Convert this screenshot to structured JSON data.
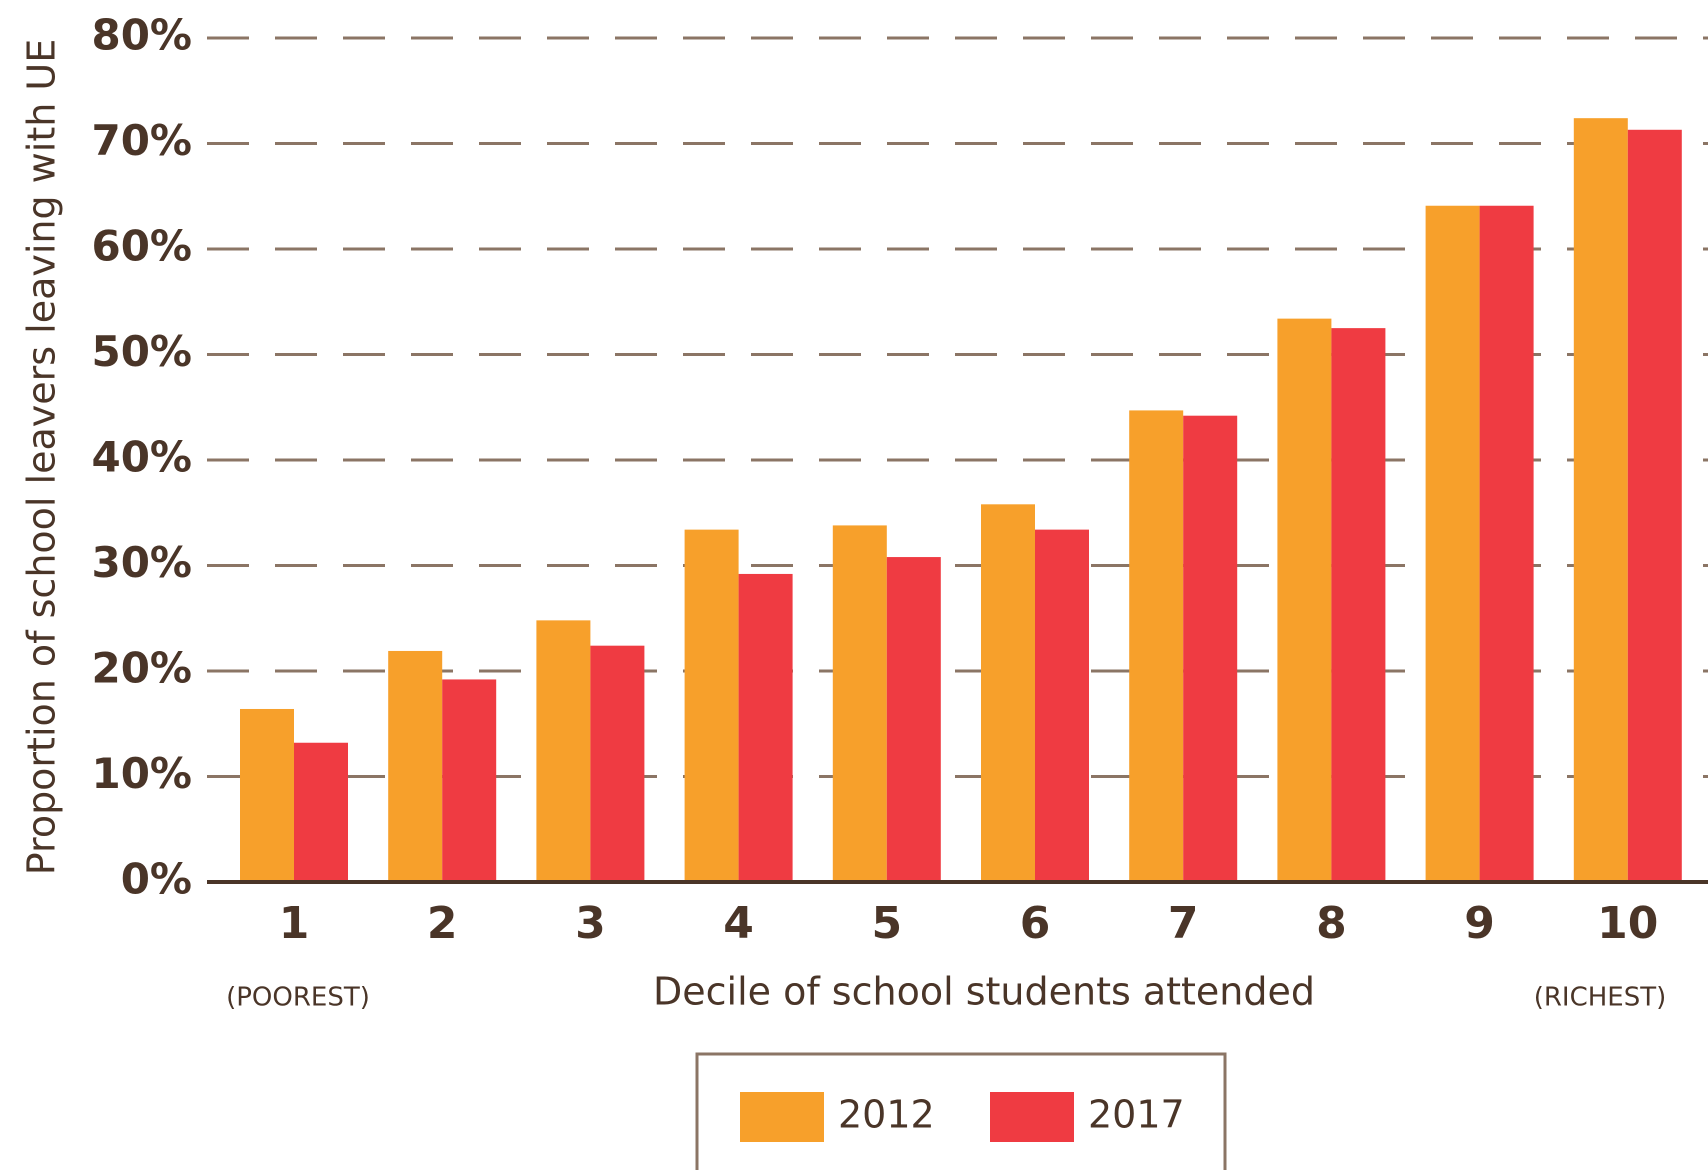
{
  "chart_data": {
    "type": "bar",
    "xlabel": "Decile of school students attended",
    "ylabel": "Proportion of school leavers leaving with UE",
    "categories": [
      "1",
      "2",
      "3",
      "4",
      "5",
      "6",
      "7",
      "8",
      "9",
      "10"
    ],
    "annotations": [
      "(POOREST)",
      "(RICHEST)"
    ],
    "series": [
      {
        "name": "2012",
        "color": "#f7a02b",
        "values": [
          16.4,
          21.9,
          24.8,
          33.4,
          33.8,
          35.8,
          44.7,
          53.4,
          64.1,
          72.4
        ]
      },
      {
        "name": "2017",
        "color": "#ef3b42",
        "values": [
          13.2,
          19.2,
          22.4,
          29.2,
          30.8,
          33.4,
          44.2,
          52.5,
          64.1,
          71.3
        ]
      }
    ],
    "ylim": [
      0,
      80
    ],
    "yticks": [
      {
        "value": 0,
        "label": "0%"
      },
      {
        "value": 10,
        "label": "10%"
      },
      {
        "value": 20,
        "label": "20%"
      },
      {
        "value": 30,
        "label": "30%"
      },
      {
        "value": 40,
        "label": "40%"
      },
      {
        "value": 50,
        "label": "50%"
      },
      {
        "value": 60,
        "label": "60%"
      },
      {
        "value": 70,
        "label": "70%"
      },
      {
        "value": 80,
        "label": "80%"
      }
    ],
    "grid": true,
    "legend": "bottom"
  }
}
